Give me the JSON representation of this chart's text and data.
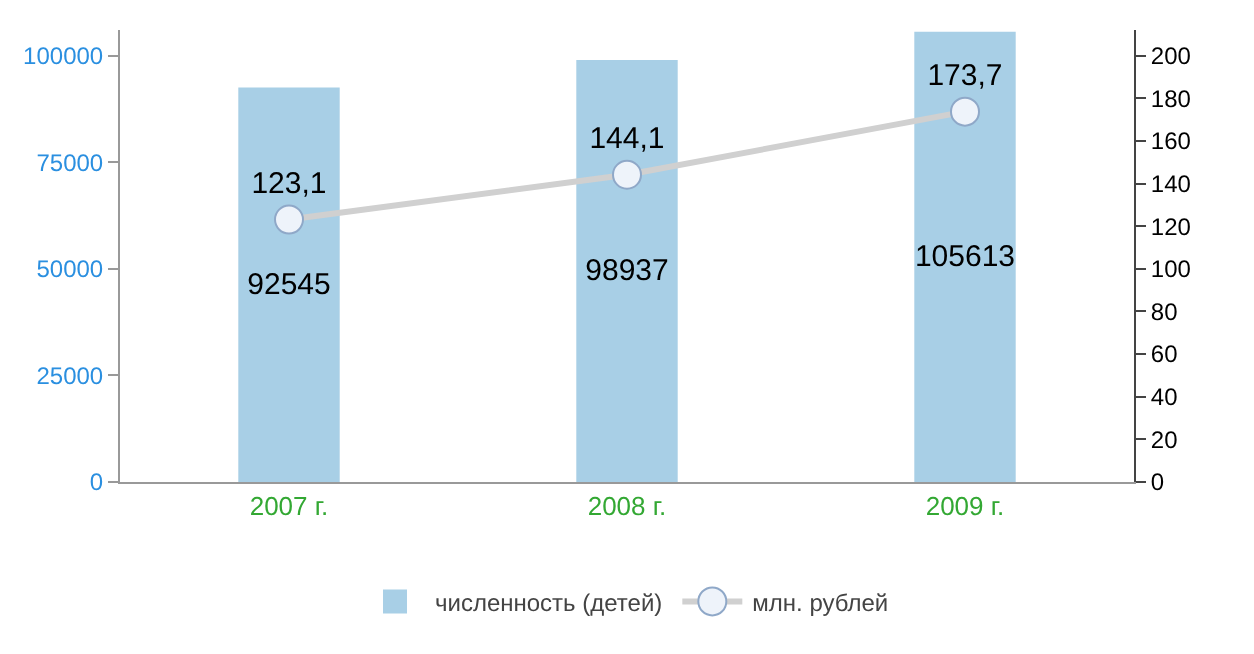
{
  "chart_data": {
    "type": "bar",
    "categories": [
      "2007 г.",
      "2008 г.",
      "2009 г."
    ],
    "series": [
      {
        "name": "численность (детей)",
        "color": "#a8cfe6",
        "values": [
          92545,
          98937,
          105613
        ]
      },
      {
        "name": "млн. рублей",
        "type": "line",
        "axis": "y2",
        "color": "#d0d0d0",
        "values": [
          123.1,
          144.1,
          173.7
        ],
        "value_labels": [
          "123,1",
          "144,1",
          "173,7"
        ]
      }
    ],
    "ylim": [
      0,
      106000
    ],
    "yticks": [
      0,
      25000,
      50000,
      75000,
      100000
    ],
    "y2lim": [
      0,
      212
    ],
    "y2ticks": [
      0,
      20,
      40,
      60,
      80,
      100,
      120,
      140,
      160,
      180,
      200
    ],
    "data_labels": true,
    "grid": false,
    "legend": "bottom",
    "marker": "circle"
  }
}
